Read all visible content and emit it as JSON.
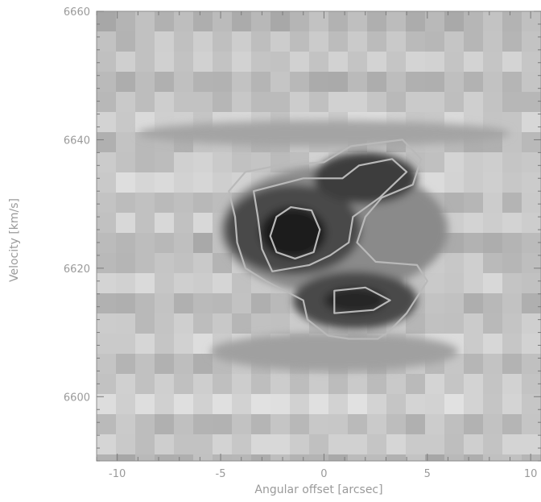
{
  "chart_data": {
    "type": "heatmap",
    "xlabel": "Angular offset [arcsec]",
    "ylabel": "Velocity [km/s]",
    "xlim": [
      -11,
      10.5
    ],
    "ylim": [
      6590,
      6660
    ],
    "x_ticks": [
      -10,
      -5,
      0,
      5,
      10
    ],
    "y_ticks": [
      6600,
      6620,
      6640,
      6660
    ],
    "x_tick_labels": [
      "-10",
      "-5",
      "0",
      "5",
      "10"
    ],
    "y_tick_labels": [
      "6600",
      "6620",
      "6640",
      "6660"
    ],
    "colormap": "grayscale (dark = high intensity)",
    "grid": false,
    "emission_peaks": [
      {
        "x": -1.5,
        "y": 6626
      },
      {
        "x": 1.5,
        "y": 6615
      }
    ],
    "contours": [
      {
        "level": "outer",
        "points": [
          [
            -4.6,
            6632
          ],
          [
            -3.8,
            6635
          ],
          [
            -2.2,
            6636
          ],
          [
            0,
            6636.5
          ],
          [
            1.3,
            6639
          ],
          [
            3.8,
            6640
          ],
          [
            4.7,
            6637
          ],
          [
            4.3,
            6633
          ],
          [
            2.8,
            6631
          ],
          [
            2,
            6628
          ],
          [
            1.6,
            6624
          ],
          [
            2.5,
            6621
          ],
          [
            4.5,
            6620.5
          ],
          [
            5,
            6618
          ],
          [
            4,
            6613
          ],
          [
            3.1,
            6610
          ],
          [
            2.6,
            6609
          ],
          [
            1.2,
            6609
          ],
          [
            0.2,
            6609.5
          ],
          [
            -0.8,
            6612
          ],
          [
            -1,
            6615
          ],
          [
            -2.8,
            6618
          ],
          [
            -3.8,
            6620
          ],
          [
            -4.2,
            6624
          ],
          [
            -4.3,
            6628
          ]
        ]
      },
      {
        "level": "middle-north",
        "points": [
          [
            -3.4,
            6632
          ],
          [
            -1,
            6634
          ],
          [
            0.9,
            6634
          ],
          [
            1.7,
            6636
          ],
          [
            3.3,
            6637
          ],
          [
            4,
            6635
          ],
          [
            2.7,
            6631
          ],
          [
            1.4,
            6628
          ],
          [
            1.2,
            6624
          ],
          [
            0.3,
            6622
          ],
          [
            -0.7,
            6620.5
          ],
          [
            -2.5,
            6619.5
          ],
          [
            -3,
            6623
          ],
          [
            -3.2,
            6628
          ]
        ]
      },
      {
        "level": "middle-south",
        "points": [
          [
            0.5,
            6616.5
          ],
          [
            2,
            6617
          ],
          [
            3.2,
            6615
          ],
          [
            2.4,
            6613.5
          ],
          [
            0.5,
            6613
          ]
        ]
      },
      {
        "level": "inner",
        "points": [
          [
            -2.3,
            6628
          ],
          [
            -1.6,
            6629.5
          ],
          [
            -0.6,
            6629
          ],
          [
            -0.2,
            6626
          ],
          [
            -0.5,
            6622.5
          ],
          [
            -1.4,
            6621.5
          ],
          [
            -2.3,
            6622.5
          ],
          [
            -2.6,
            6625
          ]
        ]
      }
    ]
  }
}
